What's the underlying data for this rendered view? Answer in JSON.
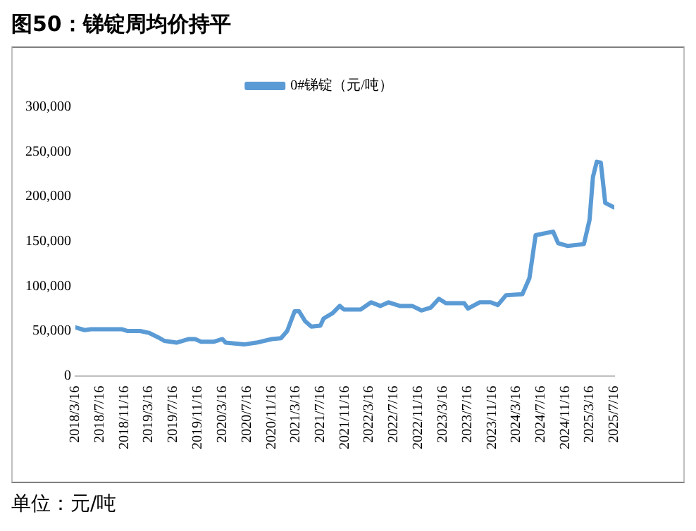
{
  "chart_data": {
    "type": "line",
    "title": "图50：锑锭周均价持平",
    "annotations": [
      "单位：元/吨"
    ],
    "legend": "top",
    "grid": false,
    "marker": "none",
    "line_style": "solid",
    "x": [
      "2018-03-16",
      "2018-05-01",
      "2018-06-01",
      "2018-11-01",
      "2018-12-01",
      "2019-02-01",
      "2019-03-16",
      "2019-05-01",
      "2019-06-01",
      "2019-08-01",
      "2019-10-01",
      "2019-11-01",
      "2019-12-01",
      "2020-02-01",
      "2020-03-16",
      "2020-04-01",
      "2020-07-01",
      "2020-09-01",
      "2020-11-16",
      "2021-01-01",
      "2021-02-01",
      "2021-03-10",
      "2021-04-01",
      "2021-05-01",
      "2021-06-01",
      "2021-07-16",
      "2021-08-01",
      "2021-09-15",
      "2021-10-20",
      "2021-11-10",
      "2022-02-01",
      "2022-03-25",
      "2022-05-10",
      "2022-06-20",
      "2022-08-15",
      "2022-10-15",
      "2022-11-30",
      "2023-01-15",
      "2023-02-25",
      "2023-04-01",
      "2023-07-01",
      "2023-07-20",
      "2023-09-15",
      "2023-11-10",
      "2023-12-15",
      "2024-01-25",
      "2024-04-15",
      "2024-05-20",
      "2024-06-20",
      "2024-09-15",
      "2024-10-10",
      "2024-11-25",
      "2025-02-15",
      "2025-03-15",
      "2025-04-01",
      "2025-04-20",
      "2025-05-10",
      "2025-06-01",
      "2025-07-15"
    ],
    "series": [
      {
        "name": "0#锑锭（元/吨）",
        "color": "#5b9bd5",
        "values": [
          54000,
          51000,
          52000,
          52000,
          50000,
          50000,
          48000,
          43000,
          39000,
          37000,
          41000,
          41000,
          38000,
          38000,
          41000,
          37000,
          35000,
          37000,
          41000,
          42000,
          50000,
          72000,
          72000,
          61000,
          55000,
          56000,
          64000,
          70000,
          78000,
          74000,
          74000,
          82000,
          78000,
          82000,
          78000,
          78000,
          73000,
          76000,
          86000,
          81000,
          81000,
          75000,
          82000,
          82000,
          79000,
          90000,
          91000,
          109000,
          157000,
          161000,
          148000,
          145000,
          147000,
          174000,
          222000,
          239000,
          238000,
          193000,
          188000
        ]
      }
    ],
    "xlim": [
      "2018-03-16",
      "2025-07-16"
    ],
    "xticks": [
      {
        "value": "2018-03-16",
        "label": "2018/3/16"
      },
      {
        "value": "2018-07-16",
        "label": "2018/7/16"
      },
      {
        "value": "2018-11-16",
        "label": "2018/11/16"
      },
      {
        "value": "2019-03-16",
        "label": "2019/3/16"
      },
      {
        "value": "2019-07-16",
        "label": "2019/7/16"
      },
      {
        "value": "2019-11-16",
        "label": "2019/11/16"
      },
      {
        "value": "2020-03-16",
        "label": "2020/3/16"
      },
      {
        "value": "2020-07-16",
        "label": "2020/7/16"
      },
      {
        "value": "2020-11-16",
        "label": "2020/11/16"
      },
      {
        "value": "2021-03-16",
        "label": "2021/3/16"
      },
      {
        "value": "2021-07-16",
        "label": "2021/7/16"
      },
      {
        "value": "2021-11-16",
        "label": "2021/11/16"
      },
      {
        "value": "2022-03-16",
        "label": "2022/3/16"
      },
      {
        "value": "2022-07-16",
        "label": "2022/7/16"
      },
      {
        "value": "2022-11-16",
        "label": "2022/11/16"
      },
      {
        "value": "2023-03-16",
        "label": "2023/3/16"
      },
      {
        "value": "2023-07-16",
        "label": "2023/7/16"
      },
      {
        "value": "2023-11-16",
        "label": "2023/11/16"
      },
      {
        "value": "2024-03-16",
        "label": "2024/3/16"
      },
      {
        "value": "2024-07-16",
        "label": "2024/7/16"
      },
      {
        "value": "2024-11-16",
        "label": "2024/11/16"
      },
      {
        "value": "2025-03-16",
        "label": "2025/3/16"
      },
      {
        "value": "2025-07-16",
        "label": "2025/7/16"
      }
    ],
    "ylim": [
      0,
      300000
    ],
    "yticks": [
      0,
      {
        "value": 50000,
        "label": "50,000"
      },
      {
        "value": 100000,
        "label": "100,000"
      },
      {
        "value": 150000,
        "label": "150,000"
      },
      {
        "value": 200000,
        "label": "200,000"
      },
      {
        "value": 250000,
        "label": "250,000"
      },
      {
        "value": 300000,
        "label": "300,000"
      }
    ]
  }
}
